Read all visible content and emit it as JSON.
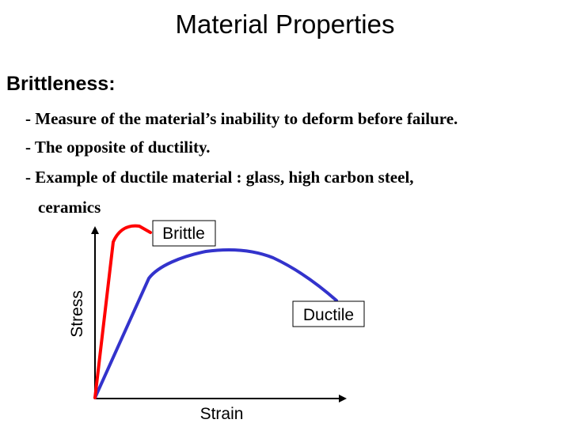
{
  "title": "Material Properties",
  "heading": "Brittleness:",
  "bullets": [
    "- Measure of the material’s inability to deform before failure.",
    "- The opposite of ductility.",
    "- Example of ductile  material :  glass, high carbon steel,",
    "ceramics"
  ],
  "diagram": {
    "y_axis_label": "Stress",
    "x_axis_label": "Strain",
    "brittle_label": "Brittle",
    "ductile_label": "Ductile",
    "brittle_color": "#ff0000",
    "ductile_color": "#3333cc",
    "axis_color": "#000000"
  }
}
